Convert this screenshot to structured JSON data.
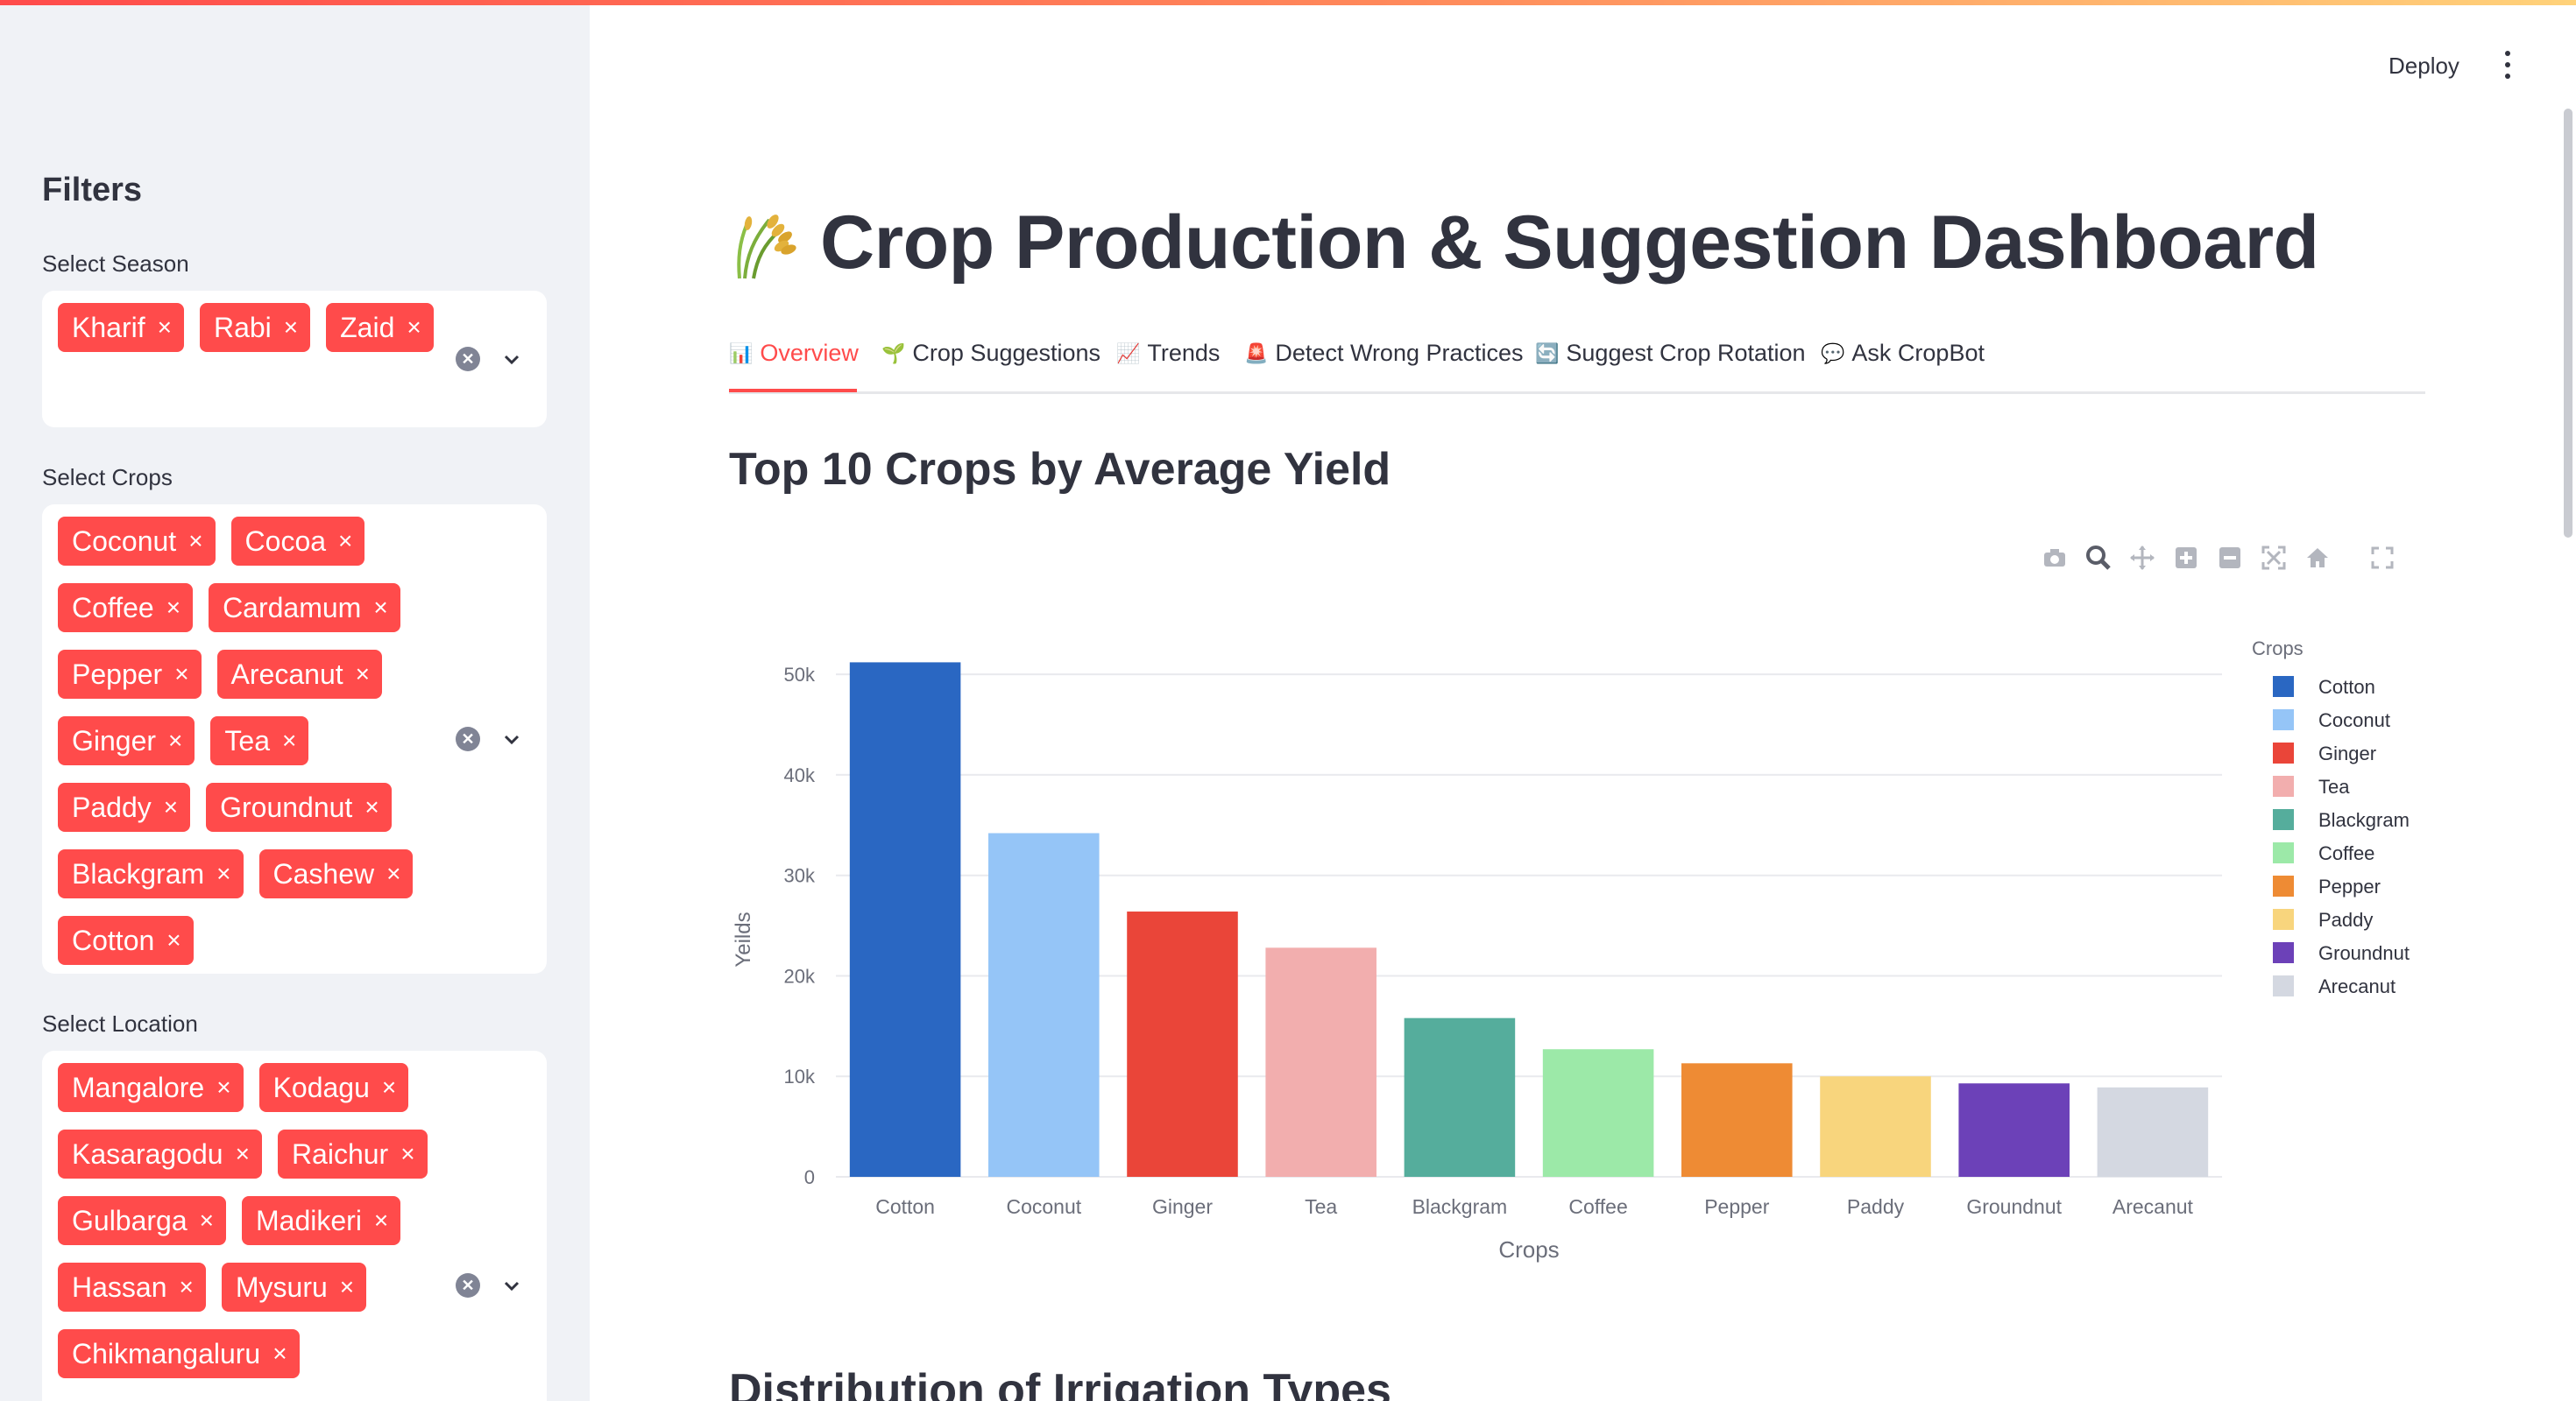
{
  "sidebar": {
    "title": "Filters",
    "season": {
      "label": "Select Season",
      "chips": [
        "Kharif",
        "Rabi",
        "Zaid"
      ]
    },
    "crops": {
      "label": "Select Crops",
      "chips": [
        "Coconut",
        "Cocoa",
        "Coffee",
        "Cardamum",
        "Pepper",
        "Arecanut",
        "Ginger",
        "Tea",
        "Paddy",
        "Groundnut",
        "Blackgram",
        "Cashew",
        "Cotton"
      ]
    },
    "location": {
      "label": "Select Location",
      "chips": [
        "Mangalore",
        "Kodagu",
        "Kasaragodu",
        "Raichur",
        "Gulbarga",
        "Madikeri",
        "Hassan",
        "Mysuru",
        "Chikmangaluru"
      ]
    },
    "chip_remove_glyph": "×"
  },
  "header": {
    "deploy_label": "Deploy"
  },
  "main": {
    "title": "Crop Production & Suggestion Dashboard",
    "title_icon": "rice-sheaf-icon",
    "tabs": [
      {
        "label": "Overview",
        "icon": "📊",
        "active": true
      },
      {
        "label": "Crop Suggestions",
        "icon": "🌱"
      },
      {
        "label": "Trends",
        "icon": "📈"
      },
      {
        "label": "Detect Wrong Practices",
        "icon": "🚨"
      },
      {
        "label": "Suggest Crop Rotation",
        "icon": "🔄"
      },
      {
        "label": "Ask CropBot",
        "icon": "💬"
      }
    ],
    "section1_title": "Top 10 Crops by Average Yield",
    "section2_title": "Distribution of Irrigation Types"
  },
  "accent_color": "#ff4b4b",
  "chart_data": {
    "type": "bar",
    "categories": [
      "Cotton",
      "Coconut",
      "Ginger",
      "Tea",
      "Blackgram",
      "Coffee",
      "Pepper",
      "Paddy",
      "Groundnut",
      "Arecanut"
    ],
    "values": [
      51200,
      34200,
      26400,
      22800,
      15800,
      12700,
      11300,
      10000,
      9300,
      8900
    ],
    "colors": [
      "#2a67c2",
      "#95c5f7",
      "#ea4539",
      "#f2aeae",
      "#55ad9c",
      "#9ce9a8",
      "#ee8b34",
      "#f8d57d",
      "#6c41b8",
      "#d4d8e1"
    ],
    "xlabel": "Crops",
    "ylabel": "Yeilds",
    "yticks": [
      0,
      10000,
      20000,
      30000,
      40000,
      50000
    ],
    "ytick_labels": [
      "0",
      "10k",
      "20k",
      "30k",
      "40k",
      "50k"
    ],
    "ylim": [
      0,
      53500
    ],
    "legend_title": "Crops",
    "legend_position": "right",
    "grid": true
  }
}
